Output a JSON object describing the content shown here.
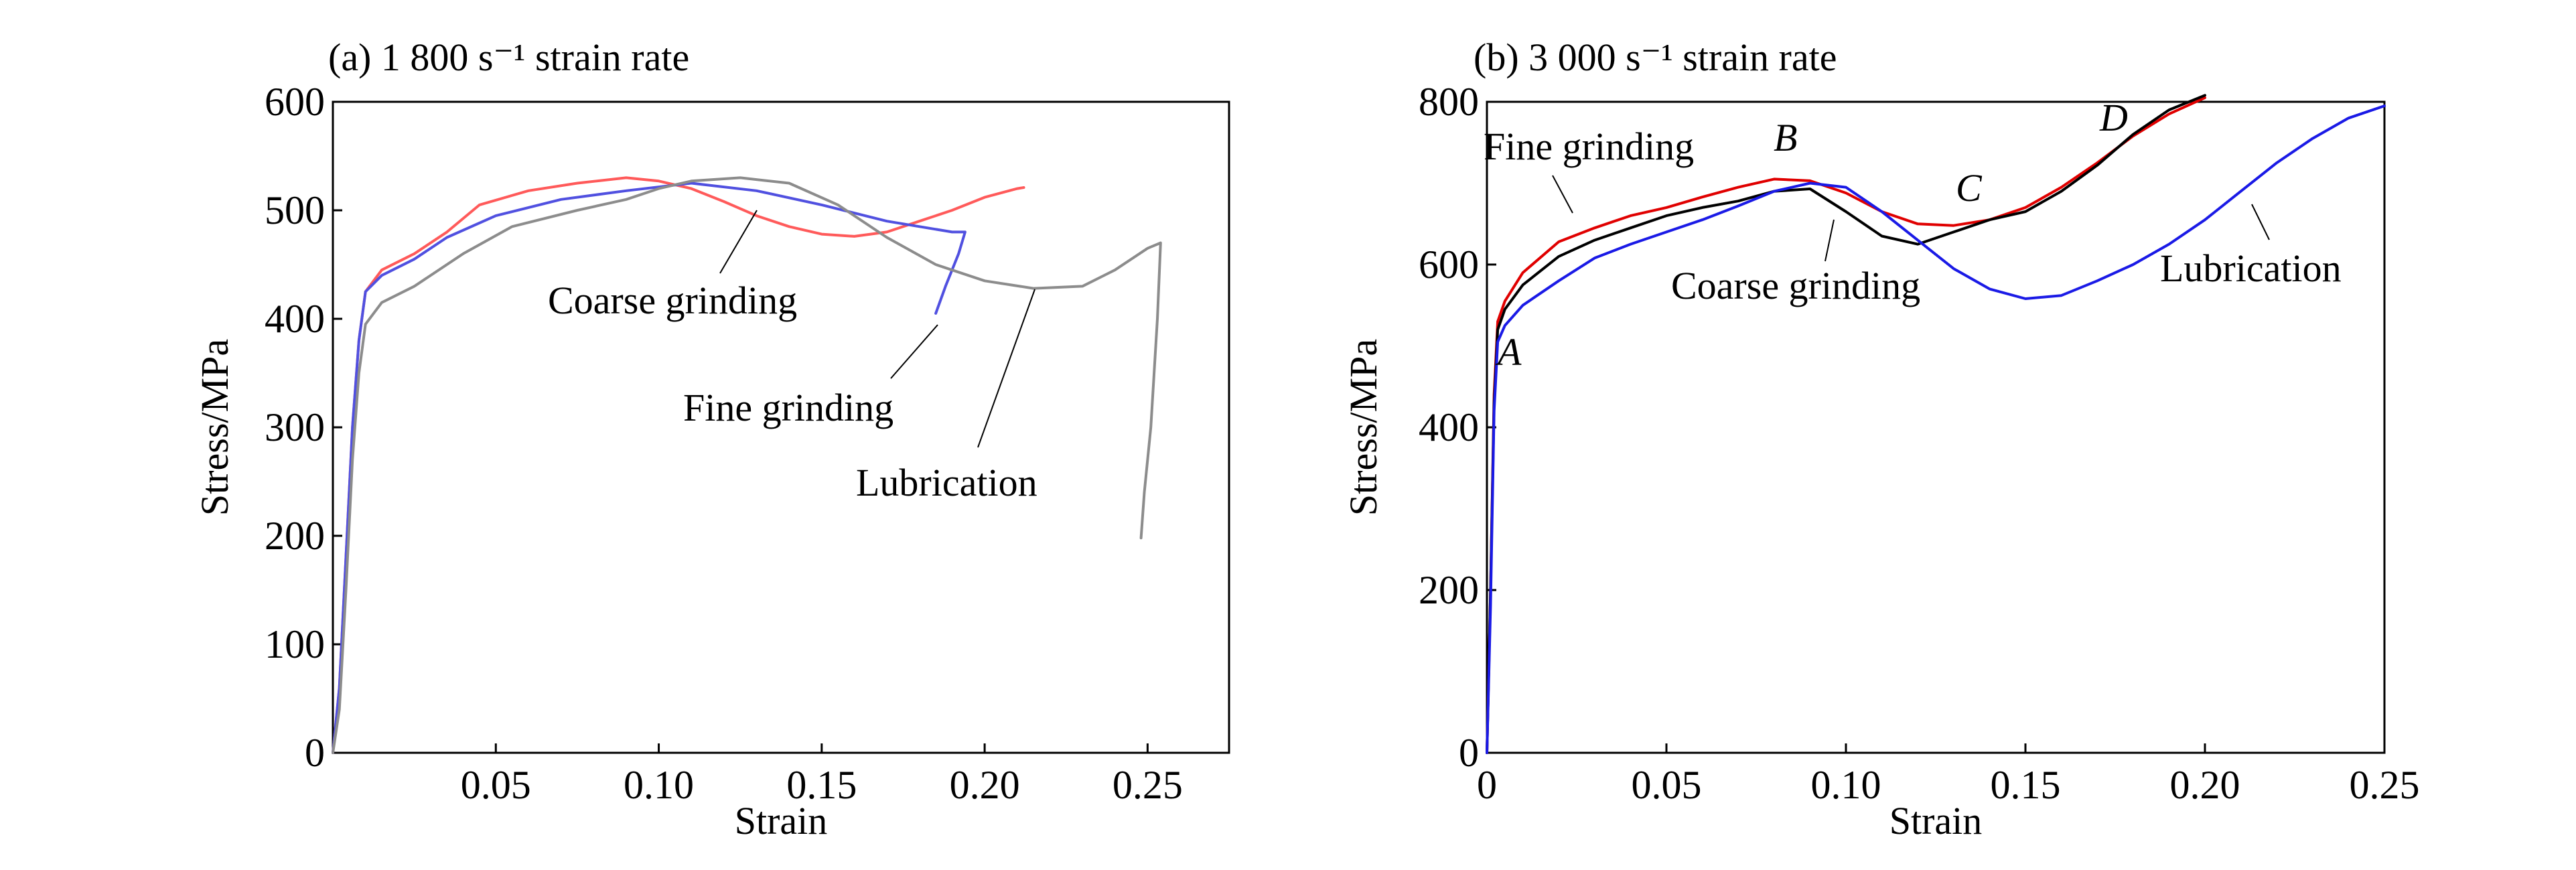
{
  "chart_data": [
    {
      "type": "line",
      "title": "(a) 1 800 s⁻¹ strain rate",
      "xlabel": "Strain",
      "ylabel": "Stress/MPa",
      "xlim": [
        0,
        0.275
      ],
      "ylim": [
        0,
        600
      ],
      "xticks": [
        "0.05",
        "0.10",
        "0.15",
        "0.20",
        "0.25"
      ],
      "yticks": [
        "0",
        "100",
        "200",
        "300",
        "400",
        "500",
        "600"
      ],
      "grid": false,
      "legend": "none (series labeled by text annotations with leader lines)",
      "series": [
        {
          "name": "Coarse grinding",
          "color": "#ff5a5a",
          "points": [
            [
              0.0,
              0
            ],
            [
              0.002,
              60
            ],
            [
              0.004,
              180
            ],
            [
              0.006,
              300
            ],
            [
              0.008,
              380
            ],
            [
              0.01,
              425
            ],
            [
              0.015,
              445
            ],
            [
              0.025,
              460
            ],
            [
              0.035,
              480
            ],
            [
              0.045,
              505
            ],
            [
              0.06,
              518
            ],
            [
              0.075,
              525
            ],
            [
              0.09,
              530
            ],
            [
              0.1,
              527
            ],
            [
              0.11,
              520
            ],
            [
              0.12,
              508
            ],
            [
              0.13,
              495
            ],
            [
              0.14,
              485
            ],
            [
              0.15,
              478
            ],
            [
              0.16,
              476
            ],
            [
              0.17,
              480
            ],
            [
              0.18,
              490
            ],
            [
              0.19,
              500
            ],
            [
              0.2,
              512
            ],
            [
              0.21,
              520
            ],
            [
              0.212,
              521
            ]
          ]
        },
        {
          "name": "Fine grinding",
          "color": "#5050e0",
          "points": [
            [
              0.0,
              0
            ],
            [
              0.002,
              60
            ],
            [
              0.004,
              180
            ],
            [
              0.006,
              300
            ],
            [
              0.008,
              380
            ],
            [
              0.01,
              425
            ],
            [
              0.015,
              440
            ],
            [
              0.025,
              455
            ],
            [
              0.035,
              475
            ],
            [
              0.05,
              495
            ],
            [
              0.07,
              510
            ],
            [
              0.09,
              518
            ],
            [
              0.11,
              525
            ],
            [
              0.13,
              518
            ],
            [
              0.15,
              505
            ],
            [
              0.17,
              490
            ],
            [
              0.18,
              485
            ],
            [
              0.19,
              480
            ],
            [
              0.194,
              480
            ],
            [
              0.192,
              460
            ],
            [
              0.188,
              430
            ],
            [
              0.185,
              405
            ]
          ]
        },
        {
          "name": "Lubrication",
          "color": "#8c8c8c",
          "points": [
            [
              0.0,
              0
            ],
            [
              0.002,
              40
            ],
            [
              0.004,
              150
            ],
            [
              0.006,
              270
            ],
            [
              0.008,
              350
            ],
            [
              0.01,
              395
            ],
            [
              0.015,
              415
            ],
            [
              0.025,
              430
            ],
            [
              0.04,
              460
            ],
            [
              0.055,
              485
            ],
            [
              0.075,
              500
            ],
            [
              0.09,
              510
            ],
            [
              0.1,
              520
            ],
            [
              0.11,
              527
            ],
            [
              0.125,
              530
            ],
            [
              0.14,
              525
            ],
            [
              0.155,
              505
            ],
            [
              0.17,
              475
            ],
            [
              0.185,
              450
            ],
            [
              0.2,
              435
            ],
            [
              0.215,
              428
            ],
            [
              0.23,
              430
            ],
            [
              0.24,
              445
            ],
            [
              0.25,
              465
            ],
            [
              0.254,
              470
            ],
            [
              0.253,
              400
            ],
            [
              0.251,
              300
            ],
            [
              0.249,
              240
            ],
            [
              0.248,
              198
            ]
          ]
        }
      ],
      "annotations": [
        "Coarse grinding",
        "Fine grinding",
        "Lubrication"
      ]
    },
    {
      "type": "line",
      "title": "(b) 3 000 s⁻¹ strain rate",
      "xlabel": "Strain",
      "ylabel": "Stress/MPa",
      "xlim": [
        0,
        0.25
      ],
      "ylim": [
        0,
        800
      ],
      "xticks": [
        "0",
        "0.05",
        "0.10",
        "0.15",
        "0.20",
        "0.25"
      ],
      "yticks": [
        "0",
        "200",
        "400",
        "600",
        "800"
      ],
      "grid": false,
      "legend": "none (series labeled by text annotations with leader lines)",
      "series": [
        {
          "name": "Fine grinding",
          "color": "#e00000",
          "points": [
            [
              0.0,
              0
            ],
            [
              0.001,
              200
            ],
            [
              0.002,
              440
            ],
            [
              0.003,
              530
            ],
            [
              0.005,
              555
            ],
            [
              0.01,
              590
            ],
            [
              0.02,
              628
            ],
            [
              0.03,
              645
            ],
            [
              0.04,
              660
            ],
            [
              0.05,
              670
            ],
            [
              0.06,
              683
            ],
            [
              0.07,
              695
            ],
            [
              0.08,
              705
            ],
            [
              0.09,
              703
            ],
            [
              0.1,
              688
            ],
            [
              0.11,
              665
            ],
            [
              0.12,
              650
            ],
            [
              0.13,
              648
            ],
            [
              0.14,
              655
            ],
            [
              0.15,
              670
            ],
            [
              0.16,
              695
            ],
            [
              0.17,
              725
            ],
            [
              0.18,
              758
            ],
            [
              0.19,
              785
            ],
            [
              0.2,
              805
            ]
          ]
        },
        {
          "name": "Coarse grinding",
          "color": "#000000",
          "points": [
            [
              0.0,
              0
            ],
            [
              0.001,
              200
            ],
            [
              0.002,
              430
            ],
            [
              0.003,
              520
            ],
            [
              0.005,
              545
            ],
            [
              0.01,
              575
            ],
            [
              0.02,
              610
            ],
            [
              0.03,
              630
            ],
            [
              0.04,
              645
            ],
            [
              0.05,
              660
            ],
            [
              0.06,
              670
            ],
            [
              0.07,
              678
            ],
            [
              0.08,
              690
            ],
            [
              0.09,
              693
            ],
            [
              0.1,
              665
            ],
            [
              0.11,
              635
            ],
            [
              0.12,
              625
            ],
            [
              0.13,
              640
            ],
            [
              0.14,
              655
            ],
            [
              0.15,
              665
            ],
            [
              0.16,
              690
            ],
            [
              0.17,
              722
            ],
            [
              0.18,
              760
            ],
            [
              0.19,
              790
            ],
            [
              0.2,
              808
            ]
          ]
        },
        {
          "name": "Lubrication",
          "color": "#1a1ae6",
          "points": [
            [
              0.0,
              0
            ],
            [
              0.001,
              180
            ],
            [
              0.002,
              420
            ],
            [
              0.003,
              505
            ],
            [
              0.005,
              525
            ],
            [
              0.01,
              550
            ],
            [
              0.02,
              580
            ],
            [
              0.03,
              608
            ],
            [
              0.04,
              625
            ],
            [
              0.05,
              640
            ],
            [
              0.06,
              655
            ],
            [
              0.07,
              672
            ],
            [
              0.08,
              690
            ],
            [
              0.09,
              700
            ],
            [
              0.1,
              695
            ],
            [
              0.11,
              665
            ],
            [
              0.12,
              630
            ],
            [
              0.13,
              595
            ],
            [
              0.14,
              570
            ],
            [
              0.15,
              558
            ],
            [
              0.16,
              562
            ],
            [
              0.17,
              580
            ],
            [
              0.18,
              600
            ],
            [
              0.19,
              625
            ],
            [
              0.2,
              655
            ],
            [
              0.21,
              690
            ],
            [
              0.22,
              725
            ],
            [
              0.23,
              755
            ],
            [
              0.24,
              780
            ],
            [
              0.25,
              795
            ]
          ]
        }
      ],
      "annotations": [
        "Fine grinding",
        "Coarse grinding",
        "Lubrication"
      ],
      "point_labels": [
        "A",
        "B",
        "C",
        "D"
      ]
    }
  ]
}
